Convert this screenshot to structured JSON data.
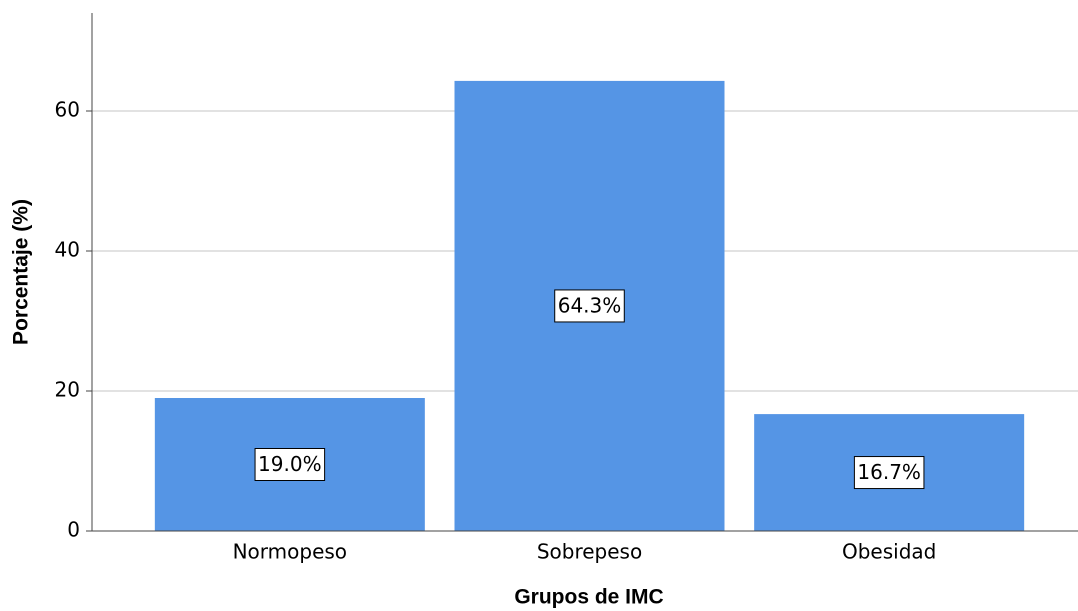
{
  "chart_data": {
    "type": "bar",
    "x_label": "Grupos de IMC",
    "y_label": "Porcentaje (%)",
    "categories": [
      "Normopeso",
      "Sobrepeso",
      "Obesidad"
    ],
    "values": [
      19.0,
      64.3,
      16.7
    ],
    "value_labels": [
      "19.0%",
      "64.3%",
      "16.7%"
    ],
    "color": "#5595e5",
    "ylim": [
      0,
      74
    ],
    "yticks": [
      0,
      20,
      40,
      60
    ],
    "grid": true
  }
}
